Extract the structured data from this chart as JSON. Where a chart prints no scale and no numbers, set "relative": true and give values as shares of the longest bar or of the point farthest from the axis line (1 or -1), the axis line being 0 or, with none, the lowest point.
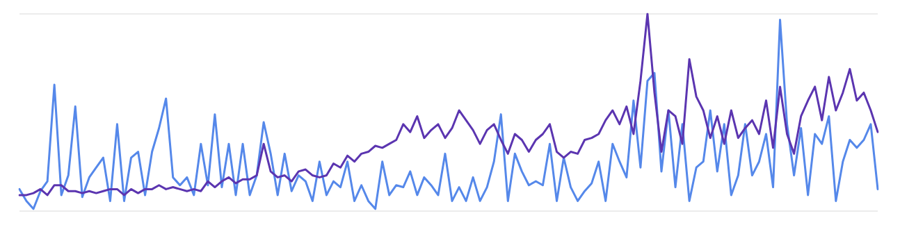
{
  "chart_data": {
    "type": "line",
    "relative": true,
    "grid": "y",
    "legend": false,
    "marker": "none",
    "line_style": "solid",
    "categories": [
      null,
      null,
      null,
      null,
      null,
      null,
      null,
      null,
      null,
      null,
      null,
      null,
      null,
      null,
      null,
      null,
      null,
      null,
      null,
      null,
      null,
      null,
      null,
      null,
      null,
      null,
      null,
      null,
      null,
      null,
      null,
      null,
      null,
      null,
      null,
      null,
      null,
      null,
      null,
      null,
      null,
      null,
      null,
      null,
      null,
      null,
      null,
      null,
      null,
      null,
      null,
      null,
      null,
      null,
      null,
      null,
      null,
      null,
      null,
      null,
      null,
      null,
      null,
      null,
      null,
      null,
      null,
      null,
      null,
      null,
      null,
      null,
      null,
      null,
      null,
      null,
      null,
      null,
      null,
      null,
      null,
      null,
      null,
      null,
      null,
      null,
      null,
      null,
      null,
      null,
      null,
      null,
      null,
      null,
      null,
      null,
      null,
      null,
      null,
      null,
      null,
      null,
      null,
      null,
      null,
      null,
      null,
      null,
      null,
      null,
      null,
      null,
      null,
      null,
      null,
      null,
      null,
      null,
      null,
      null,
      null,
      null,
      null,
      null
    ],
    "series": [
      {
        "color": "#5b35b0",
        "values": [
          0.08,
          0.08,
          0.09,
          0.11,
          0.08,
          0.13,
          0.13,
          0.1,
          0.1,
          0.09,
          0.1,
          0.09,
          0.1,
          0.11,
          0.11,
          0.08,
          0.11,
          0.09,
          0.11,
          0.11,
          0.13,
          0.11,
          0.12,
          0.11,
          0.1,
          0.11,
          0.1,
          0.15,
          0.12,
          0.15,
          0.17,
          0.14,
          0.16,
          0.16,
          0.18,
          0.34,
          0.2,
          0.17,
          0.18,
          0.15,
          0.2,
          0.21,
          0.18,
          0.17,
          0.18,
          0.24,
          0.22,
          0.28,
          0.25,
          0.29,
          0.3,
          0.33,
          0.32,
          0.34,
          0.36,
          0.44,
          0.4,
          0.48,
          0.37,
          0.41,
          0.44,
          0.37,
          0.42,
          0.51,
          0.46,
          0.41,
          0.34,
          0.41,
          0.44,
          0.36,
          0.29,
          0.39,
          0.36,
          0.3,
          0.36,
          0.39,
          0.44,
          0.3,
          0.27,
          0.3,
          0.29,
          0.36,
          0.37,
          0.39,
          0.46,
          0.51,
          0.44,
          0.53,
          0.39,
          0.66,
          1,
          0.6,
          0.3,
          0.51,
          0.48,
          0.34,
          0.77,
          0.58,
          0.51,
          0.37,
          0.48,
          0.34,
          0.51,
          0.37,
          0.42,
          0.46,
          0.39,
          0.56,
          0.32,
          0.63,
          0.39,
          0.29,
          0.48,
          0.56,
          0.63,
          0.46,
          0.68,
          0.51,
          0.6,
          0.72,
          0.56,
          0.6,
          0.51,
          0.4
        ]
      },
      {
        "color": "#5588ea",
        "values": [
          0.11,
          0.05,
          0.01,
          0.1,
          0.15,
          0.64,
          0.08,
          0.18,
          0.53,
          0.07,
          0.17,
          0.22,
          0.27,
          0.05,
          0.44,
          0.05,
          0.27,
          0.3,
          0.08,
          0.3,
          0.42,
          0.57,
          0.17,
          0.13,
          0.17,
          0.08,
          0.34,
          0.13,
          0.49,
          0.12,
          0.34,
          0.08,
          0.34,
          0.08,
          0.18,
          0.45,
          0.29,
          0.08,
          0.29,
          0.1,
          0.18,
          0.15,
          0.05,
          0.25,
          0.08,
          0.15,
          0.12,
          0.25,
          0.05,
          0.13,
          0.05,
          0.01,
          0.25,
          0.08,
          0.13,
          0.12,
          0.2,
          0.08,
          0.17,
          0.13,
          0.08,
          0.29,
          0.05,
          0.12,
          0.05,
          0.17,
          0.05,
          0.12,
          0.25,
          0.49,
          0.05,
          0.29,
          0.2,
          0.13,
          0.15,
          0.13,
          0.34,
          0.05,
          0.27,
          0.12,
          0.05,
          0.1,
          0.14,
          0.25,
          0.05,
          0.34,
          0.25,
          0.17,
          0.56,
          0.22,
          0.66,
          0.7,
          0.2,
          0.51,
          0.12,
          0.44,
          0.05,
          0.22,
          0.25,
          0.51,
          0.2,
          0.44,
          0.08,
          0.18,
          0.44,
          0.18,
          0.25,
          0.39,
          0.12,
          0.97,
          0.44,
          0.18,
          0.42,
          0.08,
          0.39,
          0.34,
          0.48,
          0.05,
          0.25,
          0.36,
          0.32,
          0.36,
          0.44,
          0.11
        ]
      }
    ]
  }
}
